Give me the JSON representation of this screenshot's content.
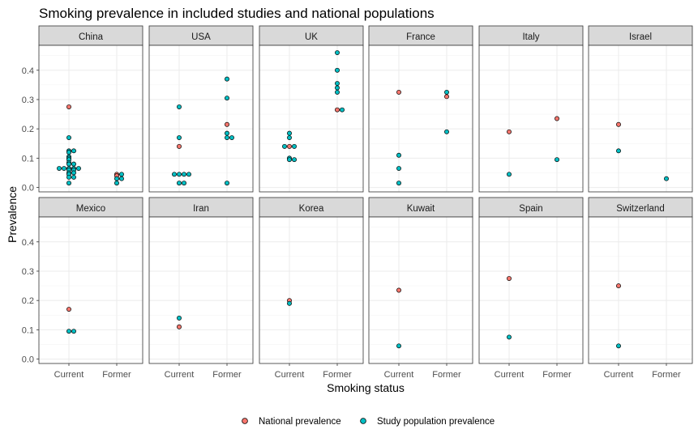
{
  "chart_data": {
    "type": "scatter",
    "title": "Smoking prevalence in included studies and national populations",
    "xlabel": "Smoking status",
    "ylabel": "Prevalence",
    "x_categories": [
      "Current",
      "Former"
    ],
    "y_ticks": [
      "0.0",
      "0.1",
      "0.2",
      "0.3",
      "0.4"
    ],
    "ylim": [
      -0.015,
      0.485
    ],
    "grid": true,
    "legend_position": "bottom",
    "colors": {
      "National prevalence": "#F8766D",
      "Study population prevalence": "#00BFC4"
    },
    "series": [
      {
        "name": "National prevalence"
      },
      {
        "name": "Study population prevalence"
      }
    ],
    "panels": [
      {
        "name": "China",
        "national": [
          {
            "x": "Current",
            "y": 0.275
          },
          {
            "x": "Former",
            "y": 0.045
          },
          {
            "x": "Former",
            "y": 0.04
          }
        ],
        "study": [
          {
            "x": "Current",
            "y": 0.17
          },
          {
            "x": "Current",
            "y": 0.125
          },
          {
            "x": "Current",
            "y": 0.12
          },
          {
            "x": "Current",
            "y": 0.125
          },
          {
            "x": "Current",
            "y": 0.105
          },
          {
            "x": "Current",
            "y": 0.1
          },
          {
            "x": "Current",
            "y": 0.095
          },
          {
            "x": "Current",
            "y": 0.085
          },
          {
            "x": "Current",
            "y": 0.08
          },
          {
            "x": "Current",
            "y": 0.08
          },
          {
            "x": "Current",
            "y": 0.065
          },
          {
            "x": "Current",
            "y": 0.065
          },
          {
            "x": "Current",
            "y": 0.06
          },
          {
            "x": "Current",
            "y": 0.065
          },
          {
            "x": "Current",
            "y": 0.06
          },
          {
            "x": "Current",
            "y": 0.065
          },
          {
            "x": "Current",
            "y": 0.065
          },
          {
            "x": "Current",
            "y": 0.05
          },
          {
            "x": "Current",
            "y": 0.045
          },
          {
            "x": "Current",
            "y": 0.05
          },
          {
            "x": "Current",
            "y": 0.035
          },
          {
            "x": "Current",
            "y": 0.035
          },
          {
            "x": "Current",
            "y": 0.015
          },
          {
            "x": "Former",
            "y": 0.045
          },
          {
            "x": "Former",
            "y": 0.03
          },
          {
            "x": "Former",
            "y": 0.03
          },
          {
            "x": "Former",
            "y": 0.015
          }
        ]
      },
      {
        "name": "USA",
        "national": [
          {
            "x": "Current",
            "y": 0.14
          },
          {
            "x": "Former",
            "y": 0.215
          }
        ],
        "study": [
          {
            "x": "Current",
            "y": 0.275
          },
          {
            "x": "Current",
            "y": 0.17
          },
          {
            "x": "Current",
            "y": 0.045
          },
          {
            "x": "Current",
            "y": 0.045
          },
          {
            "x": "Current",
            "y": 0.045
          },
          {
            "x": "Current",
            "y": 0.045
          },
          {
            "x": "Current",
            "y": 0.015
          },
          {
            "x": "Current",
            "y": 0.015
          },
          {
            "x": "Former",
            "y": 0.37
          },
          {
            "x": "Former",
            "y": 0.305
          },
          {
            "x": "Former",
            "y": 0.185
          },
          {
            "x": "Former",
            "y": 0.17
          },
          {
            "x": "Former",
            "y": 0.17
          },
          {
            "x": "Former",
            "y": 0.015
          }
        ]
      },
      {
        "name": "UK",
        "national": [
          {
            "x": "Current",
            "y": 0.14
          },
          {
            "x": "Former",
            "y": 0.265
          }
        ],
        "study": [
          {
            "x": "Current",
            "y": 0.185
          },
          {
            "x": "Current",
            "y": 0.17
          },
          {
            "x": "Current",
            "y": 0.14
          },
          {
            "x": "Current",
            "y": 0.14
          },
          {
            "x": "Current",
            "y": 0.1
          },
          {
            "x": "Current",
            "y": 0.095
          },
          {
            "x": "Current",
            "y": 0.095
          },
          {
            "x": "Former",
            "y": 0.46
          },
          {
            "x": "Former",
            "y": 0.4
          },
          {
            "x": "Former",
            "y": 0.355
          },
          {
            "x": "Former",
            "y": 0.34
          },
          {
            "x": "Former",
            "y": 0.325
          },
          {
            "x": "Former",
            "y": 0.265
          }
        ]
      },
      {
        "name": "France",
        "national": [
          {
            "x": "Current",
            "y": 0.325
          },
          {
            "x": "Former",
            "y": 0.31
          }
        ],
        "study": [
          {
            "x": "Current",
            "y": 0.11
          },
          {
            "x": "Current",
            "y": 0.065
          },
          {
            "x": "Current",
            "y": 0.015
          },
          {
            "x": "Former",
            "y": 0.325
          },
          {
            "x": "Former",
            "y": 0.19
          }
        ]
      },
      {
        "name": "Italy",
        "national": [
          {
            "x": "Current",
            "y": 0.19
          },
          {
            "x": "Former",
            "y": 0.235
          }
        ],
        "study": [
          {
            "x": "Current",
            "y": 0.045
          },
          {
            "x": "Former",
            "y": 0.095
          }
        ]
      },
      {
        "name": "Israel",
        "national": [
          {
            "x": "Current",
            "y": 0.215
          }
        ],
        "study": [
          {
            "x": "Current",
            "y": 0.125
          },
          {
            "x": "Former",
            "y": 0.03
          }
        ]
      },
      {
        "name": "Mexico",
        "national": [
          {
            "x": "Current",
            "y": 0.17
          }
        ],
        "study": [
          {
            "x": "Current",
            "y": 0.095
          },
          {
            "x": "Current",
            "y": 0.095
          }
        ]
      },
      {
        "name": "Iran",
        "national": [
          {
            "x": "Current",
            "y": 0.11
          }
        ],
        "study": [
          {
            "x": "Current",
            "y": 0.14
          }
        ]
      },
      {
        "name": "Korea",
        "national": [
          {
            "x": "Current",
            "y": 0.2
          }
        ],
        "study": [
          {
            "x": "Current",
            "y": 0.19
          }
        ]
      },
      {
        "name": "Kuwait",
        "national": [
          {
            "x": "Current",
            "y": 0.235
          }
        ],
        "study": [
          {
            "x": "Current",
            "y": 0.045
          }
        ]
      },
      {
        "name": "Spain",
        "national": [
          {
            "x": "Current",
            "y": 0.275
          }
        ],
        "study": [
          {
            "x": "Current",
            "y": 0.075
          }
        ]
      },
      {
        "name": "Switzerland",
        "national": [
          {
            "x": "Current",
            "y": 0.25
          }
        ],
        "study": [
          {
            "x": "Current",
            "y": 0.045
          }
        ]
      }
    ]
  }
}
